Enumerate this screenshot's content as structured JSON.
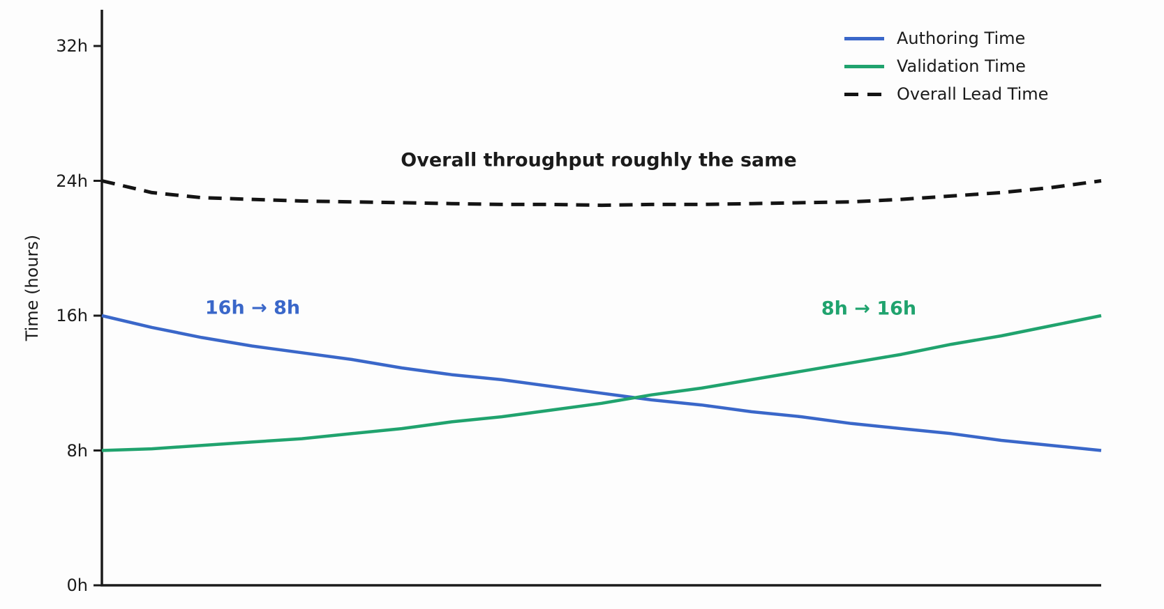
{
  "chart_data": {
    "type": "line",
    "title": "",
    "xlabel": "",
    "ylabel": "Time (hours)",
    "ylim": [
      0,
      34
    ],
    "grid": false,
    "legend_position": "top-right",
    "axis_color": "#1b1b1b",
    "yticks": [
      {
        "value": 0,
        "label": "0h"
      },
      {
        "value": 8,
        "label": "8h"
      },
      {
        "value": 16,
        "label": "16h"
      },
      {
        "value": 24,
        "label": "24h"
      },
      {
        "value": 32,
        "label": "32h"
      }
    ],
    "x_mode": "fraction-of-width",
    "x": [
      0,
      0.05,
      0.1,
      0.15,
      0.2,
      0.25,
      0.3,
      0.35,
      0.4,
      0.45,
      0.5,
      0.55,
      0.6,
      0.65,
      0.7,
      0.75,
      0.8,
      0.85,
      0.9,
      0.95,
      1
    ],
    "series": [
      {
        "id": "authoring-time",
        "name": "Authoring Time",
        "color": "#3a67c9",
        "style": "solid",
        "start_value": 16,
        "end_value": 8,
        "values": [
          16,
          15.3,
          14.7,
          14.2,
          13.8,
          13.4,
          12.9,
          12.5,
          12.2,
          11.8,
          11.4,
          11.0,
          10.7,
          10.3,
          10.0,
          9.6,
          9.3,
          9.0,
          8.6,
          8.3,
          8.0
        ]
      },
      {
        "id": "validation-time",
        "name": "Validation Time",
        "color": "#20a36e",
        "style": "solid",
        "start_value": 8,
        "end_value": 16,
        "values": [
          8.0,
          8.1,
          8.3,
          8.5,
          8.7,
          9.0,
          9.3,
          9.7,
          10.0,
          10.4,
          10.8,
          11.3,
          11.7,
          12.2,
          12.7,
          13.2,
          13.7,
          14.3,
          14.8,
          15.4,
          16.0
        ]
      },
      {
        "id": "overall-lead-time",
        "name": "Overall Lead Time",
        "color": "#141414",
        "style": "dashed",
        "start_value": 24,
        "end_value": 24,
        "values": [
          24.0,
          23.3,
          23.0,
          22.9,
          22.8,
          22.75,
          22.7,
          22.65,
          22.6,
          22.6,
          22.55,
          22.6,
          22.6,
          22.65,
          22.7,
          22.75,
          22.9,
          23.1,
          23.3,
          23.6,
          24.0
        ]
      }
    ],
    "annotations": [
      {
        "id": "throughput-note",
        "text": "Overall throughput roughly the same",
        "color": "#1b1b1b"
      },
      {
        "id": "authoring-change",
        "text": "16h → 8h",
        "color": "#3a67c9"
      },
      {
        "id": "validation-change",
        "text": "8h → 16h",
        "color": "#20a36e"
      }
    ]
  }
}
